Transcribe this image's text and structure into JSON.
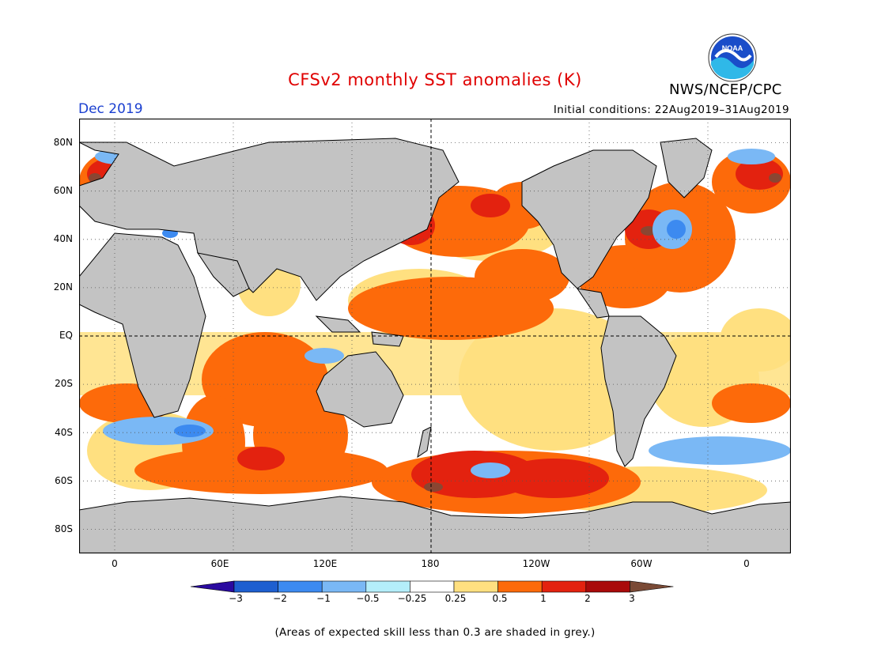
{
  "title": "CFSv2 monthly SST anomalies (K)",
  "agency": "NWS/NCEP/CPC",
  "logo_text": "NOAA",
  "month": "Dec 2019",
  "initial_conditions": "Initial conditions: 22Aug2019–31Aug2019",
  "note": "(Areas of expected skill less than 0.3 are shaded in grey.)",
  "lat_labels": [
    "80N",
    "60N",
    "40N",
    "20N",
    "EQ",
    "20S",
    "40S",
    "60S",
    "80S"
  ],
  "lon_labels": [
    "0",
    "60E",
    "120E",
    "180",
    "120W",
    "60W",
    "0"
  ],
  "colorbar": {
    "labels": [
      "−3",
      "−2",
      "−1",
      "−0.5",
      "−0.25",
      "0.25",
      "0.5",
      "1",
      "2",
      "3"
    ],
    "colors": [
      "#2a0aa0",
      "#1e5fd0",
      "#3c8af0",
      "#7ab8f5",
      "#b4eefa",
      "#ffffff",
      "#ffe080",
      "#fd6a0a",
      "#e3220f",
      "#a90a0a",
      "#7a4a36"
    ]
  },
  "colors": {
    "land": "#c3c3c3",
    "title": "#e00000",
    "month": "#1a3fd0"
  }
}
